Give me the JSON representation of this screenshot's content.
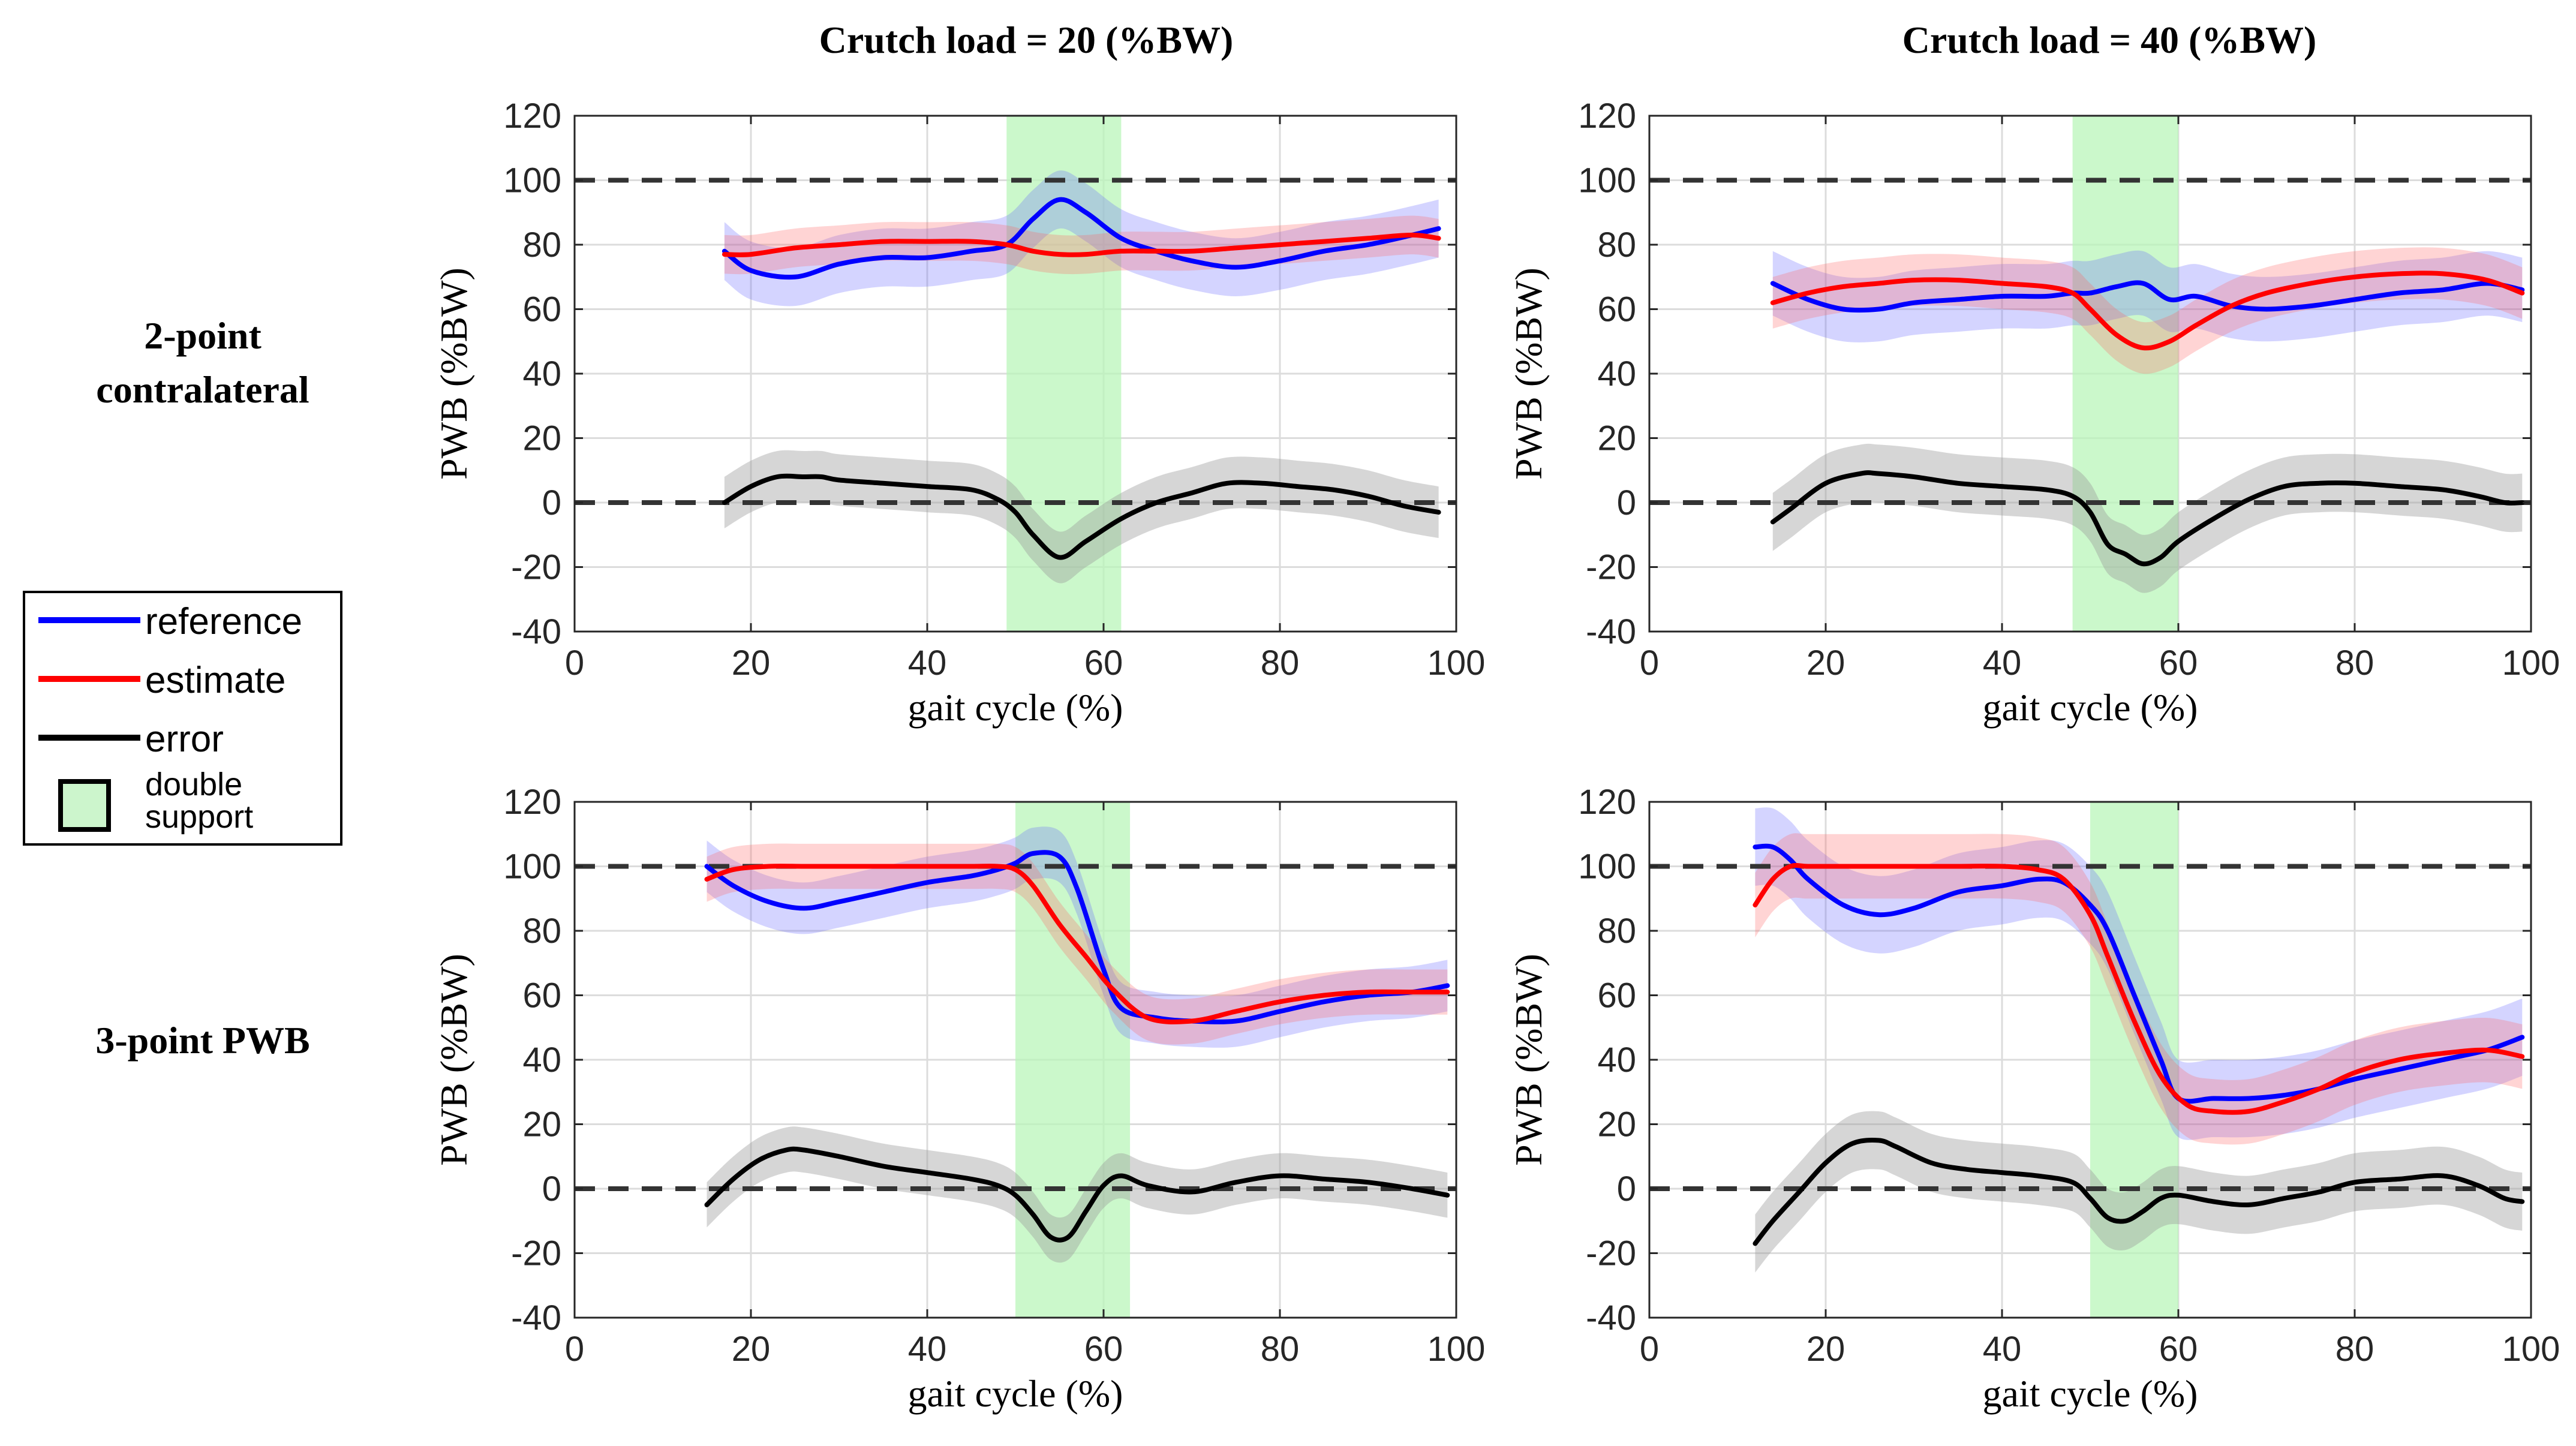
{
  "column_titles": [
    "Crutch load = 20 (%BW)",
    "Crutch load = 40 (%BW)"
  ],
  "row_labels": [
    {
      "line1": "2-point",
      "line2": "contralateral"
    },
    {
      "line1": "3-point PWB",
      "line2": ""
    }
  ],
  "legend": {
    "items": [
      {
        "label": "reference",
        "color": "#0000ff",
        "kind": "line"
      },
      {
        "label": "estimate",
        "color": "#ff0000",
        "kind": "line"
      },
      {
        "label": "error",
        "color": "#000000",
        "kind": "line"
      },
      {
        "label_line1": "double",
        "label_line2": "support",
        "color": "#ccf5cc",
        "kind": "box"
      }
    ]
  },
  "colors": {
    "reference": "#0000ff",
    "estimate": "#ff0000",
    "error": "#000000",
    "reference_band": "#6666ff",
    "estimate_band": "#ff6666",
    "error_band": "#999999",
    "double_support": "#b9f5b9",
    "grid": "#dcdcdc"
  },
  "chart_data": [
    {
      "type": "line",
      "panel": "2-point contralateral, Crutch load = 20 (%BW)",
      "xlabel": "gait cycle (%)",
      "ylabel": "PWB (%BW)",
      "xlim": [
        0,
        100
      ],
      "ylim": [
        -40,
        120
      ],
      "xticks": [
        0,
        20,
        40,
        60,
        80,
        100
      ],
      "yticks": [
        -40,
        -20,
        0,
        20,
        40,
        60,
        80,
        100,
        120
      ],
      "grid": true,
      "reference_lines": [
        0,
        100
      ],
      "double_support": [
        49,
        62
      ],
      "series": [
        {
          "name": "reference",
          "x": [
            17,
            20,
            25,
            30,
            35,
            40,
            45,
            49,
            52,
            55,
            58,
            62,
            66,
            70,
            75,
            80,
            85,
            90,
            95,
            98
          ],
          "values": [
            78,
            72,
            70,
            74,
            76,
            76,
            78,
            80,
            88,
            94,
            90,
            82,
            78,
            75,
            73,
            75,
            78,
            80,
            83,
            85
          ],
          "band": 9
        },
        {
          "name": "estimate",
          "x": [
            17,
            20,
            25,
            30,
            35,
            40,
            45,
            49,
            52,
            55,
            58,
            62,
            66,
            70,
            75,
            80,
            85,
            90,
            95,
            98
          ],
          "values": [
            77,
            77,
            79,
            80,
            81,
            81,
            81,
            80,
            78,
            77,
            77,
            78,
            78,
            78,
            79,
            80,
            81,
            82,
            83,
            82
          ],
          "band": 6
        },
        {
          "name": "error",
          "x": [
            17,
            20,
            23,
            26,
            28,
            30,
            35,
            40,
            45,
            48,
            50,
            52,
            55,
            58,
            62,
            66,
            70,
            74,
            78,
            82,
            86,
            90,
            94,
            98
          ],
          "values": [
            0,
            5,
            8,
            8,
            8,
            7,
            6,
            5,
            4,
            1,
            -3,
            -10,
            -17,
            -12,
            -5,
            0,
            3,
            6,
            6,
            5,
            4,
            2,
            -1,
            -3
          ],
          "band": 8
        }
      ]
    },
    {
      "type": "line",
      "panel": "2-point contralateral, Crutch load = 40 (%BW)",
      "xlabel": "gait cycle (%)",
      "ylabel": "PWB (%BW)",
      "xlim": [
        0,
        100
      ],
      "ylim": [
        -40,
        120
      ],
      "xticks": [
        0,
        20,
        40,
        60,
        80,
        100
      ],
      "yticks": [
        -40,
        -20,
        0,
        20,
        40,
        60,
        80,
        100,
        120
      ],
      "grid": true,
      "reference_lines": [
        0,
        100
      ],
      "double_support": [
        48,
        60
      ],
      "series": [
        {
          "name": "reference",
          "x": [
            14,
            18,
            22,
            26,
            30,
            35,
            40,
            45,
            48,
            50,
            53,
            56,
            59,
            62,
            66,
            70,
            75,
            80,
            85,
            90,
            95,
            99
          ],
          "values": [
            68,
            63,
            60,
            60,
            62,
            63,
            64,
            64,
            65,
            65,
            67,
            68,
            63,
            64,
            61,
            60,
            61,
            63,
            65,
            66,
            68,
            66
          ],
          "band": 10
        },
        {
          "name": "estimate",
          "x": [
            14,
            18,
            22,
            26,
            30,
            35,
            40,
            45,
            48,
            50,
            53,
            56,
            59,
            62,
            66,
            70,
            75,
            80,
            85,
            90,
            95,
            99
          ],
          "values": [
            62,
            65,
            67,
            68,
            69,
            69,
            68,
            67,
            65,
            60,
            52,
            48,
            50,
            55,
            61,
            65,
            68,
            70,
            71,
            71,
            69,
            65
          ],
          "band": 8
        },
        {
          "name": "error",
          "x": [
            14,
            16,
            20,
            24,
            26,
            30,
            35,
            40,
            45,
            48,
            50,
            52,
            54,
            56,
            58,
            60,
            64,
            68,
            72,
            76,
            80,
            85,
            90,
            94,
            97,
            99
          ],
          "values": [
            -6,
            -2,
            6,
            9,
            9,
            8,
            6,
            5,
            4,
            2,
            -3,
            -13,
            -16,
            -19,
            -17,
            -12,
            -5,
            1,
            5,
            6,
            6,
            5,
            4,
            2,
            0,
            0
          ],
          "band": 9
        }
      ]
    },
    {
      "type": "line",
      "panel": "3-point PWB, Crutch load = 20 (%BW)",
      "xlabel": "gait cycle (%)",
      "ylabel": "PWB (%BW)",
      "xlim": [
        0,
        100
      ],
      "ylim": [
        -40,
        120
      ],
      "xticks": [
        0,
        20,
        40,
        60,
        80,
        100
      ],
      "yticks": [
        -40,
        -20,
        0,
        20,
        40,
        60,
        80,
        100,
        120
      ],
      "grid": true,
      "reference_lines": [
        0,
        100
      ],
      "double_support": [
        50,
        63
      ],
      "series": [
        {
          "name": "reference",
          "x": [
            15,
            18,
            22,
            26,
            30,
            35,
            40,
            45,
            48,
            50,
            52,
            55,
            57,
            60,
            62,
            66,
            70,
            75,
            80,
            85,
            90,
            95,
            99
          ],
          "values": [
            100,
            94,
            89,
            87,
            89,
            92,
            95,
            97,
            99,
            101,
            104,
            103,
            93,
            68,
            56,
            53,
            52,
            52,
            55,
            58,
            60,
            61,
            63
          ],
          "band": 8
        },
        {
          "name": "estimate",
          "x": [
            15,
            18,
            22,
            26,
            30,
            35,
            40,
            45,
            48,
            50,
            52,
            55,
            58,
            61,
            65,
            70,
            75,
            80,
            85,
            90,
            95,
            99
          ],
          "values": [
            96,
            99,
            100,
            100,
            100,
            100,
            100,
            100,
            100,
            99,
            94,
            82,
            72,
            62,
            53,
            52,
            55,
            58,
            60,
            61,
            61,
            61
          ],
          "band": 7
        },
        {
          "name": "error",
          "x": [
            15,
            18,
            21,
            24,
            26,
            30,
            35,
            40,
            45,
            48,
            50,
            52,
            54,
            56,
            58,
            60,
            62,
            65,
            70,
            75,
            80,
            85,
            90,
            95,
            99
          ],
          "values": [
            -5,
            3,
            9,
            12,
            12,
            10,
            7,
            5,
            3,
            1,
            -2,
            -8,
            -15,
            -15,
            -7,
            1,
            4,
            1,
            -1,
            2,
            4,
            3,
            2,
            0,
            -2
          ],
          "band": 7
        }
      ]
    },
    {
      "type": "line",
      "panel": "3-point PWB, Crutch load = 40 (%BW)",
      "xlabel": "gait cycle (%)",
      "ylabel": "PWB (%BW)",
      "xlim": [
        0,
        100
      ],
      "ylim": [
        -40,
        120
      ],
      "xticks": [
        0,
        20,
        40,
        60,
        80,
        100
      ],
      "yticks": [
        -40,
        -20,
        0,
        20,
        40,
        60,
        80,
        100,
        120
      ],
      "grid": true,
      "reference_lines": [
        0,
        100
      ],
      "double_support": [
        50,
        60
      ],
      "series": [
        {
          "name": "reference",
          "x": [
            12,
            14,
            16,
            18,
            22,
            26,
            30,
            35,
            40,
            44,
            47,
            50,
            52,
            55,
            58,
            60,
            64,
            68,
            72,
            76,
            80,
            85,
            90,
            95,
            99
          ],
          "values": [
            106,
            106,
            102,
            96,
            88,
            85,
            87,
            92,
            94,
            96,
            95,
            88,
            80,
            60,
            40,
            28,
            28,
            28,
            29,
            31,
            34,
            37,
            40,
            43,
            47
          ],
          "band": 12
        },
        {
          "name": "estimate",
          "x": [
            12,
            14,
            16,
            18,
            22,
            26,
            30,
            35,
            40,
            44,
            47,
            50,
            52,
            55,
            58,
            61,
            64,
            68,
            72,
            76,
            80,
            85,
            90,
            95,
            99
          ],
          "values": [
            88,
            96,
            100,
            100,
            100,
            100,
            100,
            100,
            100,
            99,
            96,
            85,
            72,
            52,
            35,
            26,
            24,
            24,
            27,
            31,
            36,
            40,
            42,
            43,
            41
          ],
          "band": 10
        },
        {
          "name": "error",
          "x": [
            12,
            14,
            17,
            20,
            23,
            26,
            28,
            32,
            36,
            40,
            44,
            48,
            50,
            52,
            54,
            56,
            58,
            60,
            64,
            68,
            72,
            76,
            80,
            85,
            90,
            94,
            97,
            99
          ],
          "values": [
            -17,
            -10,
            -1,
            8,
            14,
            15,
            13,
            8,
            6,
            5,
            4,
            2,
            -3,
            -9,
            -10,
            -7,
            -3,
            -2,
            -4,
            -5,
            -3,
            -1,
            2,
            3,
            4,
            1,
            -3,
            -4
          ],
          "band": 9
        }
      ]
    }
  ]
}
